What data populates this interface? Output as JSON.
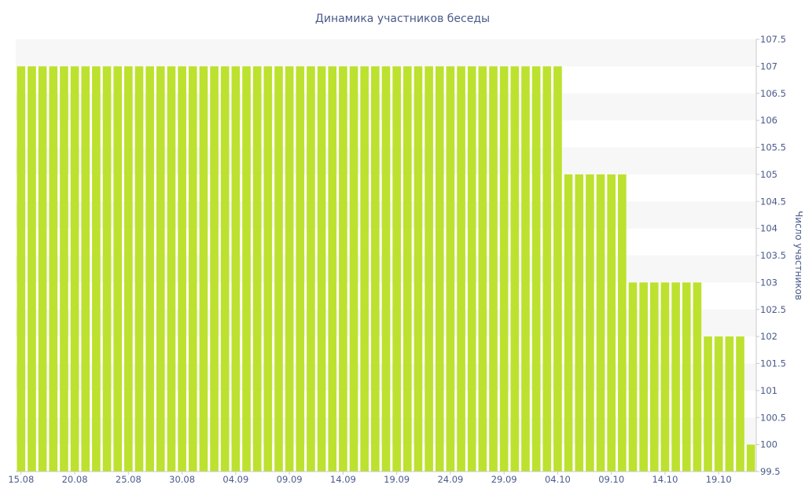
{
  "chart_data": {
    "type": "bar",
    "title": "Динамика участников беседы",
    "ylabel": "Число участников",
    "xlabel": "",
    "ylim": [
      99.5,
      107.5
    ],
    "y_ticks": [
      "99.5",
      "100",
      "100.5",
      "101",
      "101.5",
      "102",
      "102.5",
      "103",
      "103.5",
      "104",
      "104.5",
      "105",
      "105.5",
      "106",
      "106.5",
      "107",
      "107.5"
    ],
    "x_tick_labels": [
      "15.08",
      "20.08",
      "25.08",
      "30.08",
      "04.09",
      "09.09",
      "14.09",
      "19.09",
      "24.09",
      "29.09",
      "04.10",
      "09.10",
      "14.10",
      "19.10"
    ],
    "x_tick_every": 5,
    "y_axis_position": "right",
    "bar_color": "#bde12f",
    "band_color": "#f7f7f7",
    "categories": [
      "15.08",
      "16.08",
      "17.08",
      "18.08",
      "19.08",
      "20.08",
      "21.08",
      "22.08",
      "23.08",
      "24.08",
      "25.08",
      "26.08",
      "27.08",
      "28.08",
      "29.08",
      "30.08",
      "31.08",
      "01.09",
      "02.09",
      "03.09",
      "04.09",
      "05.09",
      "06.09",
      "07.09",
      "08.09",
      "09.09",
      "10.09",
      "11.09",
      "12.09",
      "13.09",
      "14.09",
      "15.09",
      "16.09",
      "17.09",
      "18.09",
      "19.09",
      "20.09",
      "21.09",
      "22.09",
      "23.09",
      "24.09",
      "25.09",
      "26.09",
      "27.09",
      "28.09",
      "29.09",
      "30.09",
      "01.10",
      "02.10",
      "03.10",
      "04.10",
      "05.10",
      "06.10",
      "07.10",
      "08.10",
      "09.10",
      "10.10",
      "11.10",
      "12.10",
      "13.10",
      "14.10",
      "15.10",
      "16.10",
      "17.10",
      "18.10",
      "19.10",
      "20.10",
      "21.10",
      "22.10"
    ],
    "values": [
      107,
      107,
      107,
      107,
      107,
      107,
      107,
      107,
      107,
      107,
      107,
      107,
      107,
      107,
      107,
      107,
      107,
      107,
      107,
      107,
      107,
      107,
      107,
      107,
      107,
      107,
      107,
      107,
      107,
      107,
      107,
      107,
      107,
      107,
      107,
      107,
      107,
      107,
      107,
      107,
      107,
      107,
      107,
      107,
      107,
      107,
      107,
      107,
      107,
      107,
      107,
      105,
      105,
      105,
      105,
      105,
      105,
      103,
      103,
      103,
      103,
      103,
      103,
      103,
      102,
      102,
      102,
      102,
      100
    ]
  }
}
